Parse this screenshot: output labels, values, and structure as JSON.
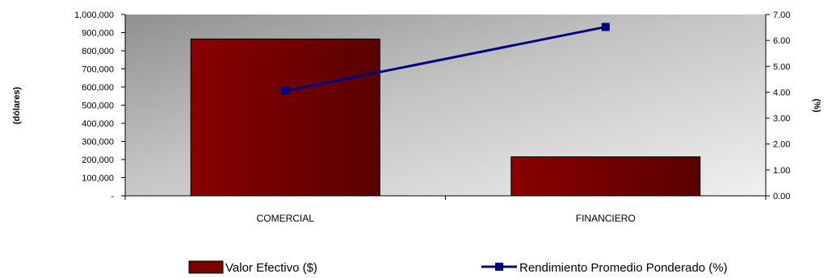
{
  "chart_data": {
    "type": "bar",
    "categories": [
      "COMERCIAL",
      "FINANCIERO"
    ],
    "series": [
      {
        "name": "Valor Efectivo ($)",
        "type": "bar",
        "axis": "left",
        "values": [
          865000,
          215000
        ],
        "color": "#7a0000"
      },
      {
        "name": "Rendimiento Promedio Ponderado (%)",
        "type": "line",
        "axis": "right",
        "values": [
          4.05,
          6.52
        ],
        "color": "#000080"
      }
    ],
    "ylabel": "(dólares)",
    "y2label": "(%)",
    "ylim": [
      0,
      1000000
    ],
    "y2lim": [
      0,
      7
    ],
    "yticks": [
      "-",
      "100,000",
      "200,000",
      "300,000",
      "400,000",
      "500,000",
      "600,000",
      "700,000",
      "800,000",
      "900,000",
      "1,000,000"
    ],
    "y2ticks": [
      "0.00",
      "1.00",
      "2.00",
      "3.00",
      "4.00",
      "5.00",
      "6.00",
      "7.00"
    ],
    "grid": false,
    "legend_position": "bottom"
  }
}
